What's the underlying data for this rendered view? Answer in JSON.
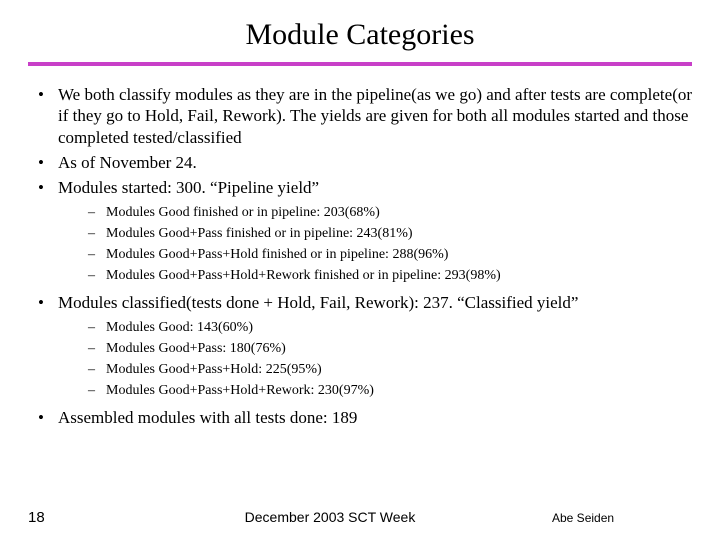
{
  "title": "Module Categories",
  "underline_color": "#c83fc8",
  "bullets": {
    "b1": "We both classify modules as they are in the pipeline(as we go) and after tests are complete(or if they go to Hold, Fail, Rework). The yields are given for both all modules started and those completed tested/classified",
    "b2": "As of November 24.",
    "b3": "Modules started: 300. “Pipeline yield”",
    "b3_sub": {
      "s1": "Modules Good finished or in pipeline: 203(68%)",
      "s2": "Modules Good+Pass finished or in pipeline: 243(81%)",
      "s3": "Modules Good+Pass+Hold finished or in pipeline: 288(96%)",
      "s4": "Modules Good+Pass+Hold+Rework finished or in pipeline: 293(98%)"
    },
    "b4": "Modules classified(tests done + Hold, Fail, Rework): 237. “Classified yield”",
    "b4_sub": {
      "s1": "Modules Good: 143(60%)",
      "s2": "Modules Good+Pass: 180(76%)",
      "s3": "Modules Good+Pass+Hold: 225(95%)",
      "s4": "Modules Good+Pass+Hold+Rework: 230(97%)"
    },
    "b5": "Assembled modules with all tests done: 189"
  },
  "footer": {
    "page": "18",
    "center": "December 2003 SCT Week",
    "author": "Abe Seiden"
  }
}
